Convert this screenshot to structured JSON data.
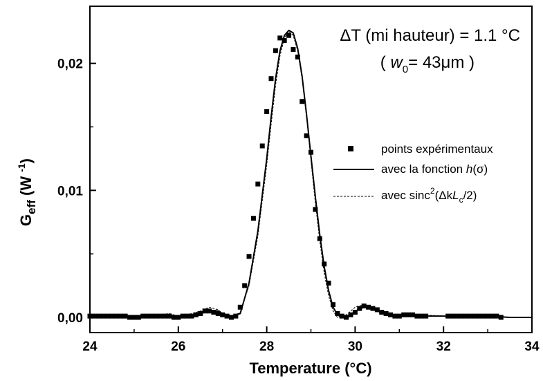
{
  "chart_data": {
    "type": "scatter",
    "xlabel": "Temperature (°C)",
    "ylabel": {
      "main": "G",
      "sub": "eff",
      "unit_open": " (W ",
      "unit_sup": "-1",
      "unit_close": ")"
    },
    "xlim": [
      24,
      34
    ],
    "ylim": [
      -0.0012,
      0.0245
    ],
    "x_ticks": [
      24,
      26,
      28,
      30,
      32,
      34
    ],
    "x_tick_labels": [
      "24",
      "26",
      "28",
      "30",
      "32",
      "34"
    ],
    "y_ticks": [
      0.0,
      0.01,
      0.02
    ],
    "y_tick_labels": [
      "0,00",
      "0,01",
      "0,02"
    ],
    "grid": false,
    "legend_position": "right",
    "annotations": {
      "line1": "ΔT (mi hauteur) = 1.1 °C",
      "line2_prefix": "( ",
      "line2_var": "w",
      "line2_sub": "0",
      "line2_suffix": "= 43μm )"
    },
    "legend": {
      "points": "points expérimentaux",
      "solid_prefix": "avec la fonction ",
      "solid_func": "h",
      "solid_arg": "(σ)",
      "dashed_prefix": "avec sinc",
      "dashed_sup": "2",
      "dashed_open": "(Δk",
      "dashed_var": "L",
      "dashed_sub": "c",
      "dashed_close": "/2)"
    },
    "series": [
      {
        "name": "points expérimentaux",
        "kind": "markers",
        "x": [
          24.0,
          24.1,
          24.2,
          24.3,
          24.4,
          24.5,
          24.6,
          24.7,
          24.8,
          24.9,
          25.0,
          25.1,
          25.2,
          25.3,
          25.4,
          25.5,
          25.6,
          25.7,
          25.8,
          25.9,
          26.0,
          26.1,
          26.2,
          26.3,
          26.4,
          26.5,
          26.6,
          26.7,
          26.8,
          26.9,
          27.0,
          27.1,
          27.2,
          27.3,
          27.4,
          27.5,
          27.6,
          27.7,
          27.8,
          27.9,
          28.0,
          28.1,
          28.2,
          28.3,
          28.4,
          28.5,
          28.6,
          28.7,
          28.8,
          28.9,
          29.0,
          29.1,
          29.2,
          29.3,
          29.4,
          29.5,
          29.6,
          29.7,
          29.8,
          29.9,
          30.0,
          30.1,
          30.2,
          30.3,
          30.4,
          30.5,
          30.6,
          30.7,
          30.8,
          30.9,
          31.0,
          31.1,
          31.2,
          31.3,
          31.4,
          31.5,
          31.6,
          32.1,
          32.2,
          32.3,
          32.4,
          32.5,
          32.6,
          32.7,
          32.8,
          32.9,
          33.0,
          33.1,
          33.2,
          33.3
        ],
        "y": [
          0.0001,
          0.0001,
          0.0001,
          0.0001,
          0.0001,
          0.0001,
          0.0001,
          0.0001,
          0.0001,
          0.0,
          0.0,
          0.0,
          0.0001,
          0.0001,
          0.0001,
          0.0001,
          0.0001,
          0.0001,
          0.0001,
          0.0,
          0.0,
          0.0001,
          0.0001,
          0.0001,
          0.0002,
          0.0003,
          0.0005,
          0.0005,
          0.0004,
          0.0003,
          0.0002,
          0.0001,
          0.0,
          0.0001,
          0.0008,
          0.0025,
          0.0048,
          0.0078,
          0.0105,
          0.0135,
          0.0162,
          0.0188,
          0.021,
          0.022,
          0.0218,
          0.0222,
          0.0211,
          0.0205,
          0.017,
          0.0143,
          0.013,
          0.0085,
          0.0062,
          0.0042,
          0.0027,
          0.001,
          0.0003,
          0.0001,
          0.0,
          0.0002,
          0.0004,
          0.0007,
          0.0009,
          0.0008,
          0.0007,
          0.0006,
          0.0004,
          0.0003,
          0.0002,
          0.0001,
          0.0001,
          0.0002,
          0.0002,
          0.0002,
          0.0001,
          0.0001,
          0.0001,
          0.0001,
          0.0001,
          0.0001,
          0.0001,
          0.0001,
          0.0001,
          0.0001,
          0.0001,
          0.0001,
          0.0001,
          0.0001,
          0.0001,
          0.0
        ]
      },
      {
        "name": "avec la fonction h(σ)",
        "kind": "solid",
        "x": [
          24.0,
          24.5,
          25.0,
          25.5,
          26.0,
          26.3,
          26.5,
          26.7,
          26.9,
          27.0,
          27.2,
          27.4,
          27.6,
          27.8,
          28.0,
          28.1,
          28.2,
          28.3,
          28.4,
          28.5,
          28.6,
          28.7,
          28.8,
          28.9,
          29.0,
          29.1,
          29.2,
          29.3,
          29.4,
          29.5,
          29.6,
          29.7,
          29.8,
          29.9,
          30.0,
          30.2,
          30.4,
          30.6,
          30.8,
          31.0,
          31.5,
          32.0,
          32.5,
          33.0,
          33.5,
          34.0
        ],
        "y": [
          0.0,
          0.0001,
          0.0,
          0.0001,
          0.0001,
          0.0002,
          0.0003,
          0.0005,
          0.0005,
          0.0003,
          0.0001,
          0.0003,
          0.0027,
          0.0068,
          0.0125,
          0.0158,
          0.0188,
          0.021,
          0.0222,
          0.0226,
          0.0224,
          0.0212,
          0.019,
          0.016,
          0.0127,
          0.0095,
          0.0065,
          0.004,
          0.0021,
          0.0008,
          0.0002,
          0.0,
          0.0,
          0.0002,
          0.0005,
          0.0008,
          0.0007,
          0.0004,
          0.0002,
          0.0001,
          0.0001,
          0.0001,
          0.0,
          0.0001,
          0.0,
          0.0
        ]
      },
      {
        "name": "avec sinc²(ΔkLc/2)",
        "kind": "dashed",
        "x": [
          24.0,
          24.5,
          25.0,
          25.5,
          25.8,
          26.0,
          26.3,
          26.5,
          26.7,
          26.9,
          27.0,
          27.2,
          27.4,
          27.6,
          27.8,
          28.0,
          28.1,
          28.2,
          28.3,
          28.4,
          28.5,
          28.6,
          28.7,
          28.8,
          28.9,
          29.0,
          29.1,
          29.2,
          29.3,
          29.4,
          29.5,
          29.6,
          29.7,
          29.8,
          29.9,
          30.0,
          30.2,
          30.4,
          30.6,
          30.8,
          31.0,
          31.5,
          32.0,
          32.5,
          33.0,
          33.5,
          34.0
        ],
        "y": [
          0.0,
          0.0001,
          0.0001,
          0.0002,
          0.0003,
          0.0001,
          0.0003,
          0.0005,
          0.0008,
          0.0006,
          0.0003,
          0.0,
          0.0004,
          0.0025,
          0.0064,
          0.012,
          0.0152,
          0.0183,
          0.0206,
          0.022,
          0.0225,
          0.0222,
          0.021,
          0.0188,
          0.0158,
          0.0124,
          0.009,
          0.006,
          0.0035,
          0.0017,
          0.0005,
          0.0,
          0.0,
          0.0002,
          0.0005,
          0.0008,
          0.001,
          0.0007,
          0.0003,
          0.0001,
          0.0001,
          0.0002,
          0.0001,
          0.0,
          0.0001,
          0.0,
          0.0
        ]
      }
    ]
  }
}
